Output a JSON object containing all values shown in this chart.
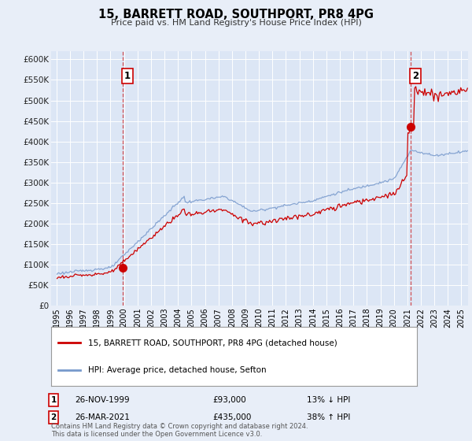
{
  "title": "15, BARRETT ROAD, SOUTHPORT, PR8 4PG",
  "subtitle": "Price paid vs. HM Land Registry's House Price Index (HPI)",
  "bg_color": "#e8eef8",
  "plot_bg_color": "#dce6f5",
  "red_color": "#cc0000",
  "blue_color": "#7799cc",
  "grid_color": "#ffffff",
  "ylim": [
    0,
    620000
  ],
  "yticks": [
    0,
    50000,
    100000,
    150000,
    200000,
    250000,
    300000,
    350000,
    400000,
    450000,
    500000,
    550000,
    600000
  ],
  "ytick_labels": [
    "£0",
    "£50K",
    "£100K",
    "£150K",
    "£200K",
    "£250K",
    "£300K",
    "£350K",
    "£400K",
    "£450K",
    "£500K",
    "£550K",
    "£600K"
  ],
  "xlim_start": 1994.6,
  "xlim_end": 2025.5,
  "xticks": [
    1995,
    1996,
    1997,
    1998,
    1999,
    2000,
    2001,
    2002,
    2003,
    2004,
    2005,
    2006,
    2007,
    2008,
    2009,
    2010,
    2011,
    2012,
    2013,
    2014,
    2015,
    2016,
    2017,
    2018,
    2019,
    2020,
    2021,
    2022,
    2023,
    2024,
    2025
  ],
  "legend_label_red": "15, BARRETT ROAD, SOUTHPORT, PR8 4PG (detached house)",
  "legend_label_blue": "HPI: Average price, detached house, Sefton",
  "sale1_x": 1999.9,
  "sale1_y": 93000,
  "sale1_label": "1",
  "sale2_x": 2021.23,
  "sale2_y": 435000,
  "sale2_label": "2",
  "footer": "Contains HM Land Registry data © Crown copyright and database right 2024.\nThis data is licensed under the Open Government Licence v3.0.",
  "table_rows": [
    [
      "1",
      "26-NOV-1999",
      "£93,000",
      "13% ↓ HPI"
    ],
    [
      "2",
      "26-MAR-2021",
      "£435,000",
      "38% ↑ HPI"
    ]
  ]
}
